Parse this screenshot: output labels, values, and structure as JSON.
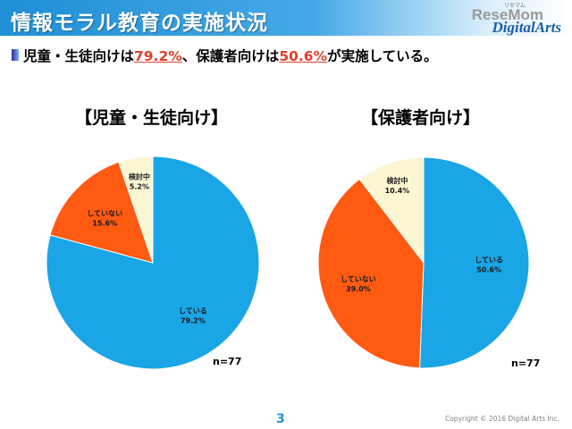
{
  "header": {
    "title": "情報モラル教育の実施状況",
    "logo_top": "ReseMom",
    "logo_sub": "リセマム",
    "logo_main": "DigitalArts"
  },
  "summary": {
    "text_1": "児童・生徒向けは",
    "value_1": "79.2%",
    "text_2": "、保護者向けは",
    "value_2": "50.6%",
    "text_3": "が実施している。"
  },
  "chart_data": [
    {
      "type": "pie",
      "title": "【児童・生徒向け】",
      "categories": [
        "している",
        "していない",
        "検討中"
      ],
      "values": [
        79.2,
        15.6,
        5.2
      ],
      "labels": [
        "79.2%",
        "15.6%",
        "5.2%"
      ],
      "colors": [
        "#1aa5e6",
        "#ff5a12",
        "#fdf6d3"
      ],
      "note": "n=77"
    },
    {
      "type": "pie",
      "title": "【保護者向け】",
      "categories": [
        "している",
        "していない",
        "検討中"
      ],
      "values": [
        50.6,
        39.0,
        10.4
      ],
      "labels": [
        "50.6%",
        "39.0%",
        "10.4%"
      ],
      "colors": [
        "#1aa5e6",
        "#ff5a12",
        "#fdf6d3"
      ],
      "note": "n=77"
    }
  ],
  "footer": {
    "page_number": "3",
    "copyright": "Copyright © 2016 Digital Arts Inc."
  }
}
